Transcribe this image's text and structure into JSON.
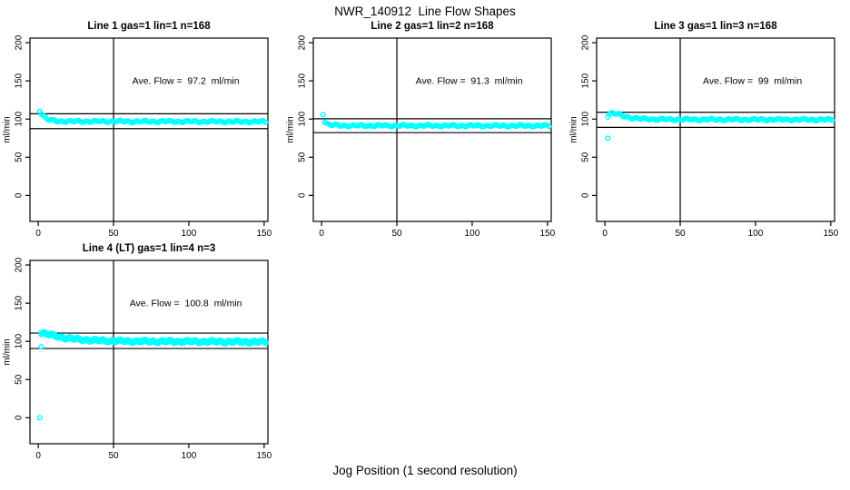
{
  "chart_data": {
    "type": "scatter",
    "title": "NWR_140912  Line Flow Shapes",
    "xlabel": "Jog Position (1 second resolution)",
    "ylabel": "ml/min",
    "point_color": "#00FFFF",
    "axis_color": "#000000",
    "xticks": [
      0,
      50,
      100,
      150
    ],
    "yticks": [
      0,
      50,
      100,
      150,
      200
    ],
    "xlim": [
      -5.5,
      152.5
    ],
    "ylim": [
      -34,
      206
    ],
    "vline_x": 50,
    "grid": false,
    "legend": "none",
    "panels": [
      {
        "title": "Line 1 gas=1 lin=1 n=168",
        "annotation": "Ave. Flow =  97.2  ml/min",
        "ave_flow": 97.2,
        "ref_lines": [
          106.9,
          87.5
        ],
        "outliers": [
          [
            1,
            110
          ]
        ],
        "band": [
          [
            2,
            108
          ],
          [
            4,
            103
          ],
          [
            6,
            100
          ],
          [
            8,
            98.3
          ],
          [
            12,
            97.3
          ],
          [
            25,
            97
          ],
          [
            80,
            96.8
          ],
          [
            151,
            96.6
          ]
        ],
        "band_rows": 1
      },
      {
        "title": "Line 2 gas=1 lin=2 n=168",
        "annotation": "Ave. Flow =  91.3  ml/min",
        "ave_flow": 91.3,
        "ref_lines": [
          100.4,
          82.2
        ],
        "outliers": [
          [
            1,
            106
          ]
        ],
        "band": [
          [
            2,
            97
          ],
          [
            4,
            93.5
          ],
          [
            6,
            92.3
          ],
          [
            10,
            91.7
          ],
          [
            20,
            91.4
          ],
          [
            80,
            91.3
          ],
          [
            151,
            91.2
          ]
        ],
        "band_rows": 1
      },
      {
        "title": "Line 3 gas=1 lin=3 n=168",
        "annotation": "Ave. Flow =  99  ml/min",
        "ave_flow": 99,
        "ref_lines": [
          108.9,
          89.1
        ],
        "outliers": [
          [
            2,
            75
          ]
        ],
        "band": [
          [
            2,
            104
          ],
          [
            3,
            106.5
          ],
          [
            5,
            108
          ],
          [
            7,
            107
          ],
          [
            10,
            105.5
          ],
          [
            14,
            103
          ],
          [
            18,
            101.5
          ],
          [
            24,
            100.3
          ],
          [
            35,
            99.7
          ],
          [
            60,
            99.4
          ],
          [
            151,
            99.2
          ]
        ],
        "band_rows": 1
      },
      {
        "title": "Line 4 (LT) gas=1 lin=4 n=3",
        "annotation": "Ave. Flow =  100.8  ml/min",
        "ave_flow": 100.8,
        "ref_lines": [
          110.9,
          90.7
        ],
        "outliers": [
          [
            1,
            0
          ],
          [
            2,
            93
          ]
        ],
        "band": [
          [
            2,
            111.5
          ],
          [
            5,
            110
          ],
          [
            10,
            107.5
          ],
          [
            15,
            105.5
          ],
          [
            20,
            104
          ],
          [
            27,
            102.5
          ],
          [
            35,
            101.5
          ],
          [
            50,
            100.5
          ],
          [
            70,
            100
          ],
          [
            100,
            99.8
          ],
          [
            130,
            99.5
          ],
          [
            151,
            99.2
          ]
        ],
        "band_rows": 2
      }
    ]
  }
}
